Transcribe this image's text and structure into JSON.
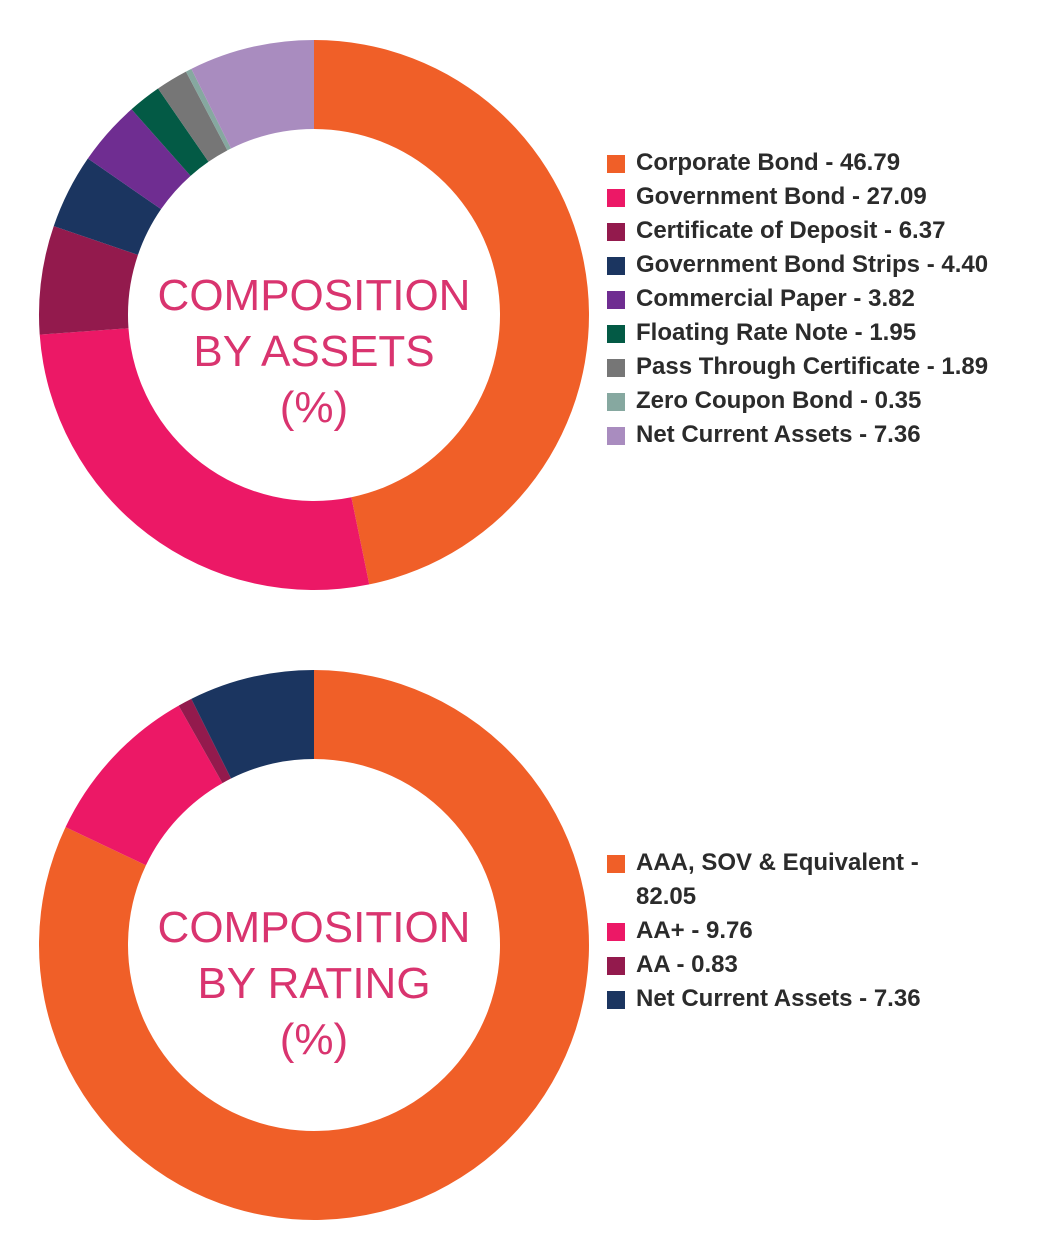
{
  "colors": {
    "title": "#d9346f",
    "text": "#2b2b2b"
  },
  "chart_data": [
    {
      "type": "pie",
      "variant": "donut",
      "title_lines": [
        "COMPOSITION",
        "BY ASSETS",
        "(%)"
      ],
      "legend_position": "right",
      "slices": [
        {
          "label": "Corporate Bond - 46.79",
          "name": "Corporate Bond",
          "value": 46.79,
          "color": "#f05f28"
        },
        {
          "label": "Government Bond - 27.09",
          "name": "Government Bond",
          "value": 27.09,
          "color": "#ec1866"
        },
        {
          "label": "Certificate of Deposit - 6.37",
          "name": "Certificate of Deposit",
          "value": 6.37,
          "color": "#931a4d"
        },
        {
          "label": "Government Bond Strips - 4.40",
          "name": "Government Bond Strips",
          "value": 4.4,
          "color": "#1b3560"
        },
        {
          "label": "Commercial Paper - 3.82",
          "name": "Commercial Paper",
          "value": 3.82,
          "color": "#6f2d91"
        },
        {
          "label": "Floating Rate Note - 1.95",
          "name": "Floating Rate Note",
          "value": 1.95,
          "color": "#035a45"
        },
        {
          "label": "Pass Through Certificate - 1.89",
          "name": "Pass Through Certificate",
          "value": 1.89,
          "color": "#767676"
        },
        {
          "label": "Zero Coupon Bond - 0.35",
          "name": "Zero Coupon Bond",
          "value": 0.35,
          "color": "#86a8a0"
        },
        {
          "label": "Net Current Assets - 7.36",
          "name": "Net Current Assets",
          "value": 7.36,
          "color": "#a98cbf"
        }
      ]
    },
    {
      "type": "pie",
      "variant": "donut",
      "title_lines": [
        "COMPOSITION",
        "BY RATING",
        "(%)"
      ],
      "legend_position": "right",
      "slices": [
        {
          "label": "AAA, SOV & Equivalent -",
          "label_line2": "82.05",
          "name": "AAA, SOV & Equivalent",
          "value": 82.05,
          "color": "#f05f28"
        },
        {
          "label": "AA+ - 9.76",
          "name": "AA+",
          "value": 9.76,
          "color": "#ec1866"
        },
        {
          "label": "AA - 0.83",
          "name": "AA",
          "value": 0.83,
          "color": "#931a4d"
        },
        {
          "label": "Net Current Assets - 7.36",
          "name": "Net Current Assets",
          "value": 7.36,
          "color": "#1b3560"
        }
      ]
    }
  ]
}
